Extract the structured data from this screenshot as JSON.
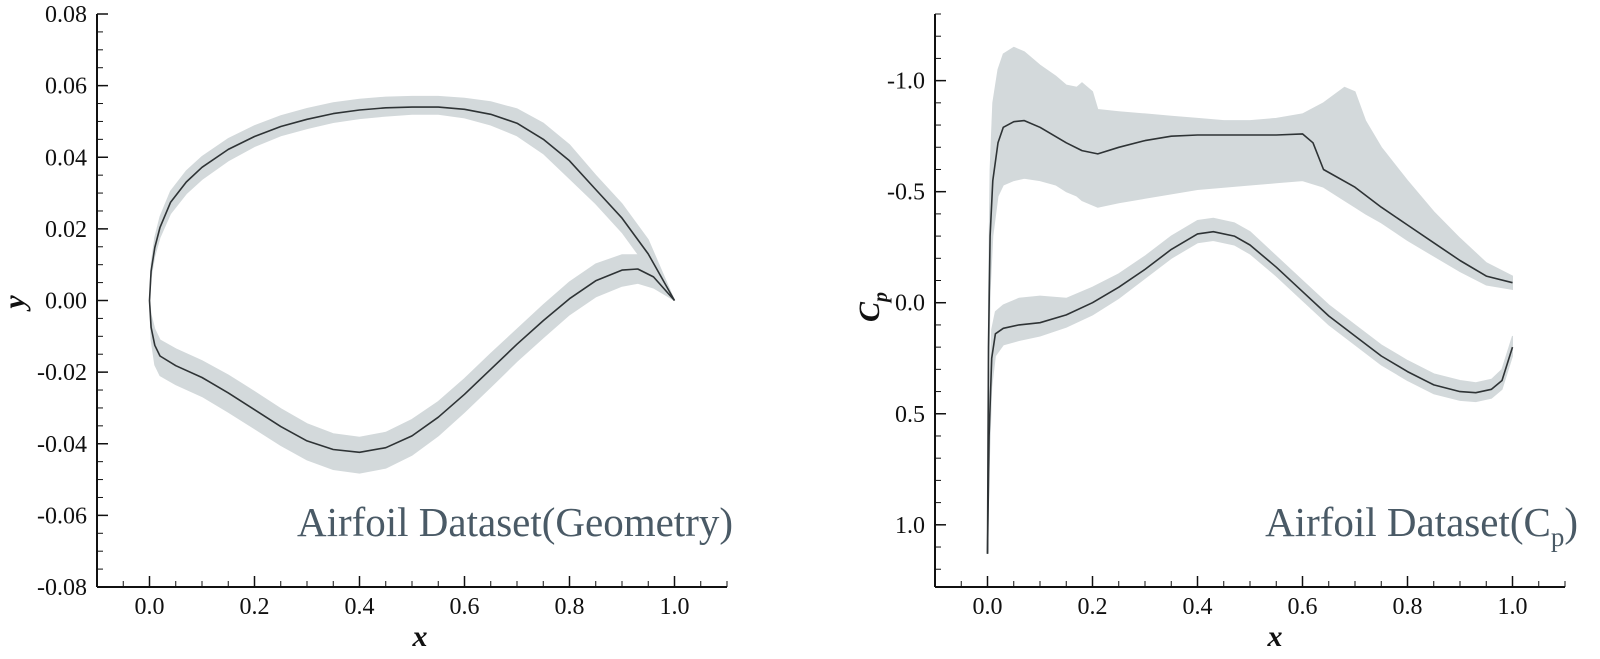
{
  "chart_data": [
    {
      "type": "line",
      "title": "",
      "xlabel": "x",
      "ylabel": "y",
      "xlim": [
        -0.1,
        1.1
      ],
      "ylim": [
        -0.08,
        0.08
      ],
      "x_ticks": [
        "0.0",
        "0.2",
        "0.4",
        "0.6",
        "0.8",
        "1.0"
      ],
      "y_ticks": [
        "0.08",
        "0.06",
        "0.04",
        "0.02",
        "0.00",
        "-0.02",
        "-0.04",
        "-0.06",
        "-0.08"
      ],
      "annotation": "Airfoil Dataset(Geometry)",
      "band_color": "#d3d9db",
      "line_color": "#2e3335",
      "series": [
        {
          "values": [
            [
              1.0,
              0.0
            ],
            [
              0.95,
              0.013
            ],
            [
              0.9,
              0.023
            ],
            [
              0.85,
              0.031
            ],
            [
              0.8,
              0.039
            ],
            [
              0.75,
              0.045
            ],
            [
              0.7,
              0.0495
            ],
            [
              0.65,
              0.052
            ],
            [
              0.6,
              0.0534
            ],
            [
              0.55,
              0.054
            ],
            [
              0.5,
              0.054
            ],
            [
              0.45,
              0.0538
            ],
            [
              0.4,
              0.0532
            ],
            [
              0.35,
              0.0522
            ],
            [
              0.3,
              0.0506
            ],
            [
              0.25,
              0.0486
            ],
            [
              0.2,
              0.0458
            ],
            [
              0.15,
              0.0422
            ],
            [
              0.1,
              0.0372
            ],
            [
              0.07,
              0.0331
            ],
            [
              0.04,
              0.0274
            ],
            [
              0.02,
              0.0204
            ],
            [
              0.01,
              0.0148
            ],
            [
              0.003,
              0.0082
            ],
            [
              0.0,
              0.0
            ]
          ]
        },
        {
          "values": [
            [
              0.0,
              0.0
            ],
            [
              0.003,
              -0.0075
            ],
            [
              0.01,
              -0.0125
            ],
            [
              0.02,
              -0.0155
            ],
            [
              0.05,
              -0.0182
            ],
            [
              0.1,
              -0.0215
            ],
            [
              0.15,
              -0.0258
            ],
            [
              0.2,
              -0.0305
            ],
            [
              0.25,
              -0.0352
            ],
            [
              0.3,
              -0.0392
            ],
            [
              0.35,
              -0.0416
            ],
            [
              0.4,
              -0.0424
            ],
            [
              0.45,
              -0.0411
            ],
            [
              0.5,
              -0.0378
            ],
            [
              0.55,
              -0.0326
            ],
            [
              0.6,
              -0.0262
            ],
            [
              0.65,
              -0.0192
            ],
            [
              0.7,
              -0.0122
            ],
            [
              0.75,
              -0.0056
            ],
            [
              0.8,
              0.0005
            ],
            [
              0.85,
              0.0055
            ],
            [
              0.9,
              0.0085
            ],
            [
              0.93,
              0.0088
            ],
            [
              0.96,
              0.0066
            ],
            [
              1.0,
              0.0
            ]
          ]
        }
      ],
      "band": {
        "upper_surface": [
          [
            1.0,
            0.0,
            0.0
          ],
          [
            0.95,
            0.009,
            0.017
          ],
          [
            0.9,
            0.019,
            0.027
          ],
          [
            0.85,
            0.027,
            0.035
          ],
          [
            0.8,
            0.034,
            0.0435
          ],
          [
            0.75,
            0.041,
            0.0495
          ],
          [
            0.7,
            0.046,
            0.0535
          ],
          [
            0.65,
            0.049,
            0.0555
          ],
          [
            0.6,
            0.051,
            0.0565
          ],
          [
            0.55,
            0.052,
            0.057
          ],
          [
            0.5,
            0.052,
            0.057
          ],
          [
            0.45,
            0.0515,
            0.0568
          ],
          [
            0.4,
            0.0508,
            0.0562
          ],
          [
            0.35,
            0.0497,
            0.0552
          ],
          [
            0.3,
            0.048,
            0.0536
          ],
          [
            0.25,
            0.046,
            0.0516
          ],
          [
            0.2,
            0.043,
            0.0488
          ],
          [
            0.15,
            0.039,
            0.0452
          ],
          [
            0.1,
            0.0338,
            0.0402
          ],
          [
            0.07,
            0.0298,
            0.0362
          ],
          [
            0.04,
            0.0242,
            0.0305
          ],
          [
            0.02,
            0.0176,
            0.0234
          ],
          [
            0.01,
            0.0124,
            0.0176
          ],
          [
            0.003,
            0.0064,
            0.0102
          ],
          [
            0.0,
            0.0,
            0.0
          ]
        ],
        "lower_surface": [
          [
            0.0,
            0.0,
            0.0
          ],
          [
            0.003,
            -0.011,
            -0.004
          ],
          [
            0.01,
            -0.018,
            -0.008
          ],
          [
            0.02,
            -0.021,
            -0.011
          ],
          [
            0.05,
            -0.0235,
            -0.0135
          ],
          [
            0.1,
            -0.0268,
            -0.0168
          ],
          [
            0.15,
            -0.0312,
            -0.0208
          ],
          [
            0.2,
            -0.0358,
            -0.0254
          ],
          [
            0.25,
            -0.0405,
            -0.0302
          ],
          [
            0.3,
            -0.0445,
            -0.0344
          ],
          [
            0.35,
            -0.0472,
            -0.0372
          ],
          [
            0.4,
            -0.0482,
            -0.0382
          ],
          [
            0.45,
            -0.0468,
            -0.0368
          ],
          [
            0.5,
            -0.0432,
            -0.0332
          ],
          [
            0.55,
            -0.0378,
            -0.0282
          ],
          [
            0.6,
            -0.0312,
            -0.0218
          ],
          [
            0.65,
            -0.0242,
            -0.0148
          ],
          [
            0.7,
            -0.017,
            -0.008
          ],
          [
            0.75,
            -0.0104,
            -0.0012
          ],
          [
            0.8,
            -0.004,
            0.0052
          ],
          [
            0.85,
            0.001,
            0.0102
          ],
          [
            0.9,
            0.004,
            0.0128
          ],
          [
            0.93,
            0.0048,
            0.0128
          ],
          [
            0.96,
            0.0035,
            0.0098
          ],
          [
            1.0,
            0.0,
            0.0
          ]
        ]
      }
    },
    {
      "type": "line",
      "title": "",
      "xlabel": "x",
      "ylabel": "C",
      "ylabel_sub": "p",
      "xlim": [
        -0.1,
        1.1
      ],
      "ylim": [
        1.28,
        -1.3
      ],
      "y_reversed": true,
      "x_ticks": [
        "0.0",
        "0.2",
        "0.4",
        "0.6",
        "0.8",
        "1.0"
      ],
      "y_ticks": [
        "-1.0",
        "-0.5",
        "0.0",
        "0.5",
        "1.0"
      ],
      "annotation": "Airfoil Dataset(C",
      "annotation_sub": "p",
      "annotation_end": ")",
      "band_color": "#d3d9db",
      "line_color": "#2e3335",
      "series": [
        {
          "values": [
            [
              0.0,
              1.13
            ],
            [
              0.002,
              0.2
            ],
            [
              0.005,
              -0.3
            ],
            [
              0.01,
              -0.55
            ],
            [
              0.02,
              -0.72
            ],
            [
              0.03,
              -0.79
            ],
            [
              0.05,
              -0.815
            ],
            [
              0.07,
              -0.82
            ],
            [
              0.1,
              -0.79
            ],
            [
              0.15,
              -0.72
            ],
            [
              0.18,
              -0.685
            ],
            [
              0.21,
              -0.67
            ],
            [
              0.25,
              -0.7
            ],
            [
              0.3,
              -0.73
            ],
            [
              0.35,
              -0.75
            ],
            [
              0.4,
              -0.755
            ],
            [
              0.45,
              -0.755
            ],
            [
              0.5,
              -0.755
            ],
            [
              0.55,
              -0.755
            ],
            [
              0.6,
              -0.76
            ],
            [
              0.62,
              -0.72
            ],
            [
              0.64,
              -0.6
            ],
            [
              0.7,
              -0.52
            ],
            [
              0.75,
              -0.43
            ],
            [
              0.8,
              -0.35
            ],
            [
              0.85,
              -0.27
            ],
            [
              0.9,
              -0.19
            ],
            [
              0.95,
              -0.12
            ],
            [
              1.0,
              -0.09
            ]
          ]
        },
        {
          "values": [
            [
              0.0,
              1.13
            ],
            [
              0.003,
              0.6
            ],
            [
              0.008,
              0.25
            ],
            [
              0.015,
              0.14
            ],
            [
              0.03,
              0.115
            ],
            [
              0.06,
              0.1
            ],
            [
              0.1,
              0.09
            ],
            [
              0.15,
              0.055
            ],
            [
              0.2,
              0.0
            ],
            [
              0.25,
              -0.07
            ],
            [
              0.3,
              -0.15
            ],
            [
              0.35,
              -0.24
            ],
            [
              0.4,
              -0.31
            ],
            [
              0.43,
              -0.32
            ],
            [
              0.47,
              -0.3
            ],
            [
              0.5,
              -0.26
            ],
            [
              0.55,
              -0.16
            ],
            [
              0.6,
              -0.05
            ],
            [
              0.65,
              0.06
            ],
            [
              0.7,
              0.15
            ],
            [
              0.75,
              0.24
            ],
            [
              0.8,
              0.31
            ],
            [
              0.85,
              0.37
            ],
            [
              0.9,
              0.4
            ],
            [
              0.93,
              0.405
            ],
            [
              0.96,
              0.39
            ],
            [
              0.98,
              0.35
            ],
            [
              1.0,
              0.2
            ]
          ]
        }
      ],
      "band": {
        "upper_surface": [
          [
            0.0,
            1.13,
            1.13
          ],
          [
            0.002,
            0.45,
            -0.05
          ],
          [
            0.005,
            -0.05,
            -0.6
          ],
          [
            0.01,
            -0.3,
            -0.9
          ],
          [
            0.02,
            -0.48,
            -1.05
          ],
          [
            0.03,
            -0.53,
            -1.12
          ],
          [
            0.05,
            -0.55,
            -1.15
          ],
          [
            0.07,
            -0.56,
            -1.13
          ],
          [
            0.1,
            -0.55,
            -1.07
          ],
          [
            0.13,
            -0.53,
            -1.02
          ],
          [
            0.15,
            -0.5,
            -0.98
          ],
          [
            0.17,
            -0.48,
            -0.97
          ],
          [
            0.18,
            -0.46,
            -0.99
          ],
          [
            0.2,
            -0.44,
            -0.95
          ],
          [
            0.21,
            -0.43,
            -0.87
          ],
          [
            0.25,
            -0.45,
            -0.86
          ],
          [
            0.3,
            -0.47,
            -0.85
          ],
          [
            0.35,
            -0.49,
            -0.84
          ],
          [
            0.4,
            -0.51,
            -0.83
          ],
          [
            0.45,
            -0.52,
            -0.82
          ],
          [
            0.5,
            -0.53,
            -0.82
          ],
          [
            0.55,
            -0.54,
            -0.83
          ],
          [
            0.6,
            -0.55,
            -0.85
          ],
          [
            0.64,
            -0.52,
            -0.9
          ],
          [
            0.68,
            -0.46,
            -0.97
          ],
          [
            0.7,
            -0.43,
            -0.95
          ],
          [
            0.72,
            -0.4,
            -0.82
          ],
          [
            0.75,
            -0.36,
            -0.7
          ],
          [
            0.8,
            -0.28,
            -0.55
          ],
          [
            0.85,
            -0.21,
            -0.41
          ],
          [
            0.9,
            -0.14,
            -0.29
          ],
          [
            0.95,
            -0.08,
            -0.18
          ],
          [
            1.0,
            -0.06,
            -0.12
          ]
        ],
        "lower_surface": [
          [
            0.0,
            1.13,
            1.13
          ],
          [
            0.003,
            0.75,
            0.45
          ],
          [
            0.008,
            0.38,
            0.12
          ],
          [
            0.015,
            0.24,
            0.04
          ],
          [
            0.03,
            0.19,
            0.01
          ],
          [
            0.06,
            0.17,
            -0.02
          ],
          [
            0.1,
            0.15,
            -0.03
          ],
          [
            0.15,
            0.11,
            -0.02
          ],
          [
            0.2,
            0.055,
            -0.07
          ],
          [
            0.25,
            -0.02,
            -0.13
          ],
          [
            0.3,
            -0.11,
            -0.21
          ],
          [
            0.35,
            -0.2,
            -0.3
          ],
          [
            0.4,
            -0.27,
            -0.37
          ],
          [
            0.43,
            -0.28,
            -0.38
          ],
          [
            0.47,
            -0.26,
            -0.36
          ],
          [
            0.5,
            -0.22,
            -0.32
          ],
          [
            0.55,
            -0.12,
            -0.21
          ],
          [
            0.6,
            -0.01,
            -0.1
          ],
          [
            0.65,
            0.1,
            0.01
          ],
          [
            0.7,
            0.19,
            0.1
          ],
          [
            0.75,
            0.28,
            0.19
          ],
          [
            0.8,
            0.35,
            0.26
          ],
          [
            0.85,
            0.41,
            0.32
          ],
          [
            0.9,
            0.44,
            0.35
          ],
          [
            0.93,
            0.445,
            0.36
          ],
          [
            0.96,
            0.43,
            0.345
          ],
          [
            0.98,
            0.39,
            0.3
          ],
          [
            1.0,
            0.24,
            0.15
          ]
        ]
      }
    }
  ]
}
